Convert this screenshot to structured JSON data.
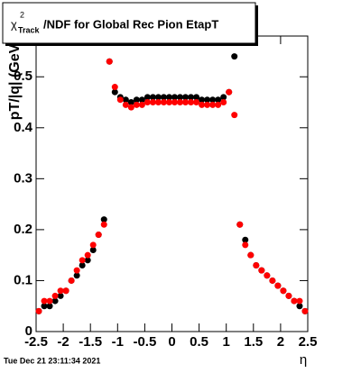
{
  "chart_data": {
    "type": "scatter",
    "title": {
      "symbol": "χ",
      "superscript": "2",
      "subscript": "Track",
      "text": "/NDF for Global Rec Pion EtapT"
    },
    "x_label": "η",
    "y_label": "pT/|q| (GeV/c)",
    "timestamp": "Tue Dec 21 23:11:34 2021",
    "xlim": [
      -2.5,
      2.5
    ],
    "ylim": [
      0,
      0.58
    ],
    "xticks": [
      -2.5,
      -2,
      -1.5,
      -1,
      -0.5,
      0,
      0.5,
      1,
      1.5,
      2,
      2.5
    ],
    "yticks": [
      0,
      0.1,
      0.2,
      0.3,
      0.4,
      0.5
    ],
    "grid": false,
    "x": [
      -2.45,
      -2.35,
      -2.25,
      -2.15,
      -2.05,
      -1.95,
      -1.85,
      -1.75,
      -1.65,
      -1.55,
      -1.45,
      -1.35,
      -1.25,
      -1.15,
      -1.05,
      -0.95,
      -0.85,
      -0.75,
      -0.65,
      -0.55,
      -0.45,
      -0.35,
      -0.25,
      -0.15,
      -0.05,
      0.05,
      0.15,
      0.25,
      0.35,
      0.45,
      0.55,
      0.65,
      0.75,
      0.85,
      0.95,
      1.05,
      1.15,
      1.25,
      1.35,
      1.45,
      1.55,
      1.65,
      1.75,
      1.85,
      1.95,
      2.05,
      2.15,
      2.25,
      2.35,
      2.45
    ],
    "series": [
      {
        "name": "black",
        "color": "#000000",
        "values": [
          0.04,
          0.05,
          0.05,
          0.06,
          0.07,
          0.08,
          0.1,
          0.11,
          0.13,
          0.14,
          0.16,
          0.19,
          0.22,
          0.53,
          0.47,
          0.46,
          0.455,
          0.45,
          0.455,
          0.455,
          0.46,
          0.46,
          0.46,
          0.46,
          0.46,
          0.46,
          0.46,
          0.46,
          0.46,
          0.46,
          0.455,
          0.455,
          0.455,
          0.455,
          0.46,
          0.47,
          0.54,
          0.21,
          0.18,
          0.15,
          0.13,
          0.12,
          0.11,
          0.1,
          0.09,
          0.08,
          0.07,
          0.06,
          0.05,
          0.04
        ]
      },
      {
        "name": "red",
        "color": "#ff0000",
        "values": [
          0.04,
          0.06,
          0.06,
          0.07,
          0.08,
          0.08,
          0.1,
          0.12,
          0.14,
          0.15,
          0.17,
          0.19,
          0.21,
          0.53,
          0.48,
          0.455,
          0.445,
          0.44,
          0.445,
          0.445,
          0.45,
          0.45,
          0.45,
          0.45,
          0.45,
          0.45,
          0.45,
          0.45,
          0.45,
          0.45,
          0.445,
          0.445,
          0.445,
          0.445,
          0.45,
          0.47,
          0.425,
          0.21,
          0.17,
          0.15,
          0.13,
          0.12,
          0.11,
          0.1,
          0.09,
          0.08,
          0.07,
          0.06,
          0.06,
          0.04
        ]
      }
    ]
  }
}
